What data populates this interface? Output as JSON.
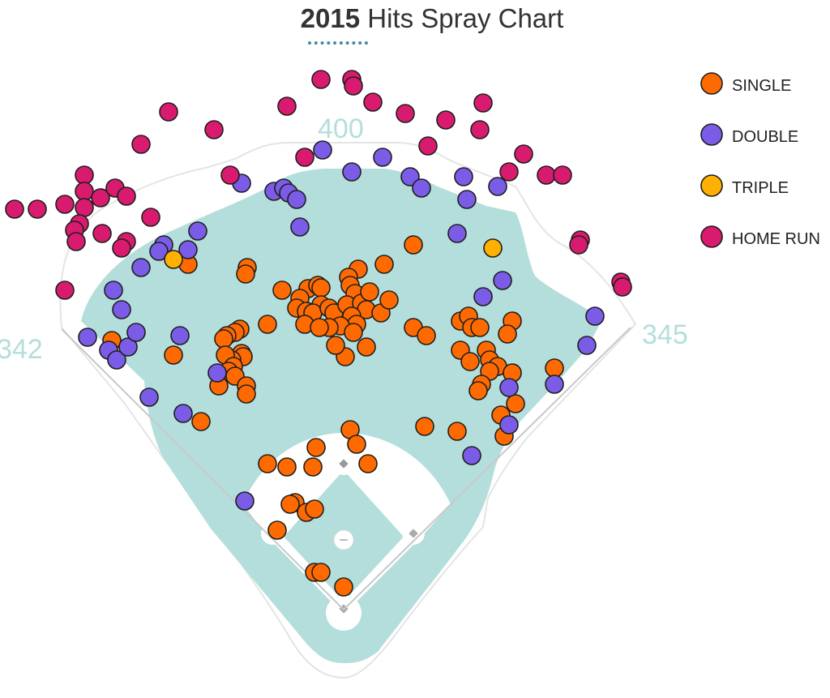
{
  "title": {
    "year": "2015",
    "rest": " Hits Spray Chart"
  },
  "colors": {
    "SINGLE": "#ff6a00",
    "DOUBLE": "#7b5ce6",
    "TRIPLE": "#ffb000",
    "HOME RUN": "#d81b6e",
    "field": "#b4dedb",
    "wall": "#dcdcdc"
  },
  "chart_data": {
    "type": "scatter",
    "title": "2015 Hits Spray Chart",
    "distance_labels": {
      "left_field": "342",
      "center_field": "400",
      "right_field": "345"
    },
    "legend": [
      "SINGLE",
      "DOUBLE",
      "TRIPLE",
      "HOME RUN"
    ],
    "legend_position": "top-right",
    "series": [
      {
        "name": "SINGLE",
        "points": [
          [
            510,
            302
          ],
          [
            474,
            326
          ],
          [
            442,
            332
          ],
          [
            430,
            342
          ],
          [
            432,
            352
          ],
          [
            438,
            362
          ],
          [
            305,
            330
          ],
          [
            303,
            338
          ],
          [
            348,
            358
          ],
          [
            380,
            356
          ],
          [
            392,
            352
          ],
          [
            396,
            355
          ],
          [
            370,
            368
          ],
          [
            366,
            380
          ],
          [
            378,
            384
          ],
          [
            396,
            376
          ],
          [
            386,
            386
          ],
          [
            406,
            380
          ],
          [
            412,
            386
          ],
          [
            428,
            376
          ],
          [
            446,
            374
          ],
          [
            452,
            382
          ],
          [
            470,
            386
          ],
          [
            480,
            370
          ],
          [
            456,
            360
          ],
          [
            434,
            390
          ],
          [
            440,
            400
          ],
          [
            420,
            402
          ],
          [
            406,
            404
          ],
          [
            376,
            400
          ],
          [
            394,
            404
          ],
          [
            330,
            400
          ],
          [
            296,
            406
          ],
          [
            290,
            410
          ],
          [
            280,
            414
          ],
          [
            276,
            418
          ],
          [
            298,
            436
          ],
          [
            300,
            440
          ],
          [
            286,
            444
          ],
          [
            278,
            438
          ],
          [
            288,
            452
          ],
          [
            282,
            458
          ],
          [
            290,
            464
          ],
          [
            270,
            476
          ],
          [
            304,
            476
          ],
          [
            304,
            486
          ],
          [
            436,
            410
          ],
          [
            452,
            428
          ],
          [
            426,
            440
          ],
          [
            414,
            426
          ],
          [
            510,
            404
          ],
          [
            526,
            414
          ],
          [
            568,
            396
          ],
          [
            578,
            390
          ],
          [
            582,
            404
          ],
          [
            592,
            404
          ],
          [
            632,
            396
          ],
          [
            626,
            412
          ],
          [
            600,
            432
          ],
          [
            604,
            444
          ],
          [
            614,
            452
          ],
          [
            632,
            460
          ],
          [
            604,
            458
          ],
          [
            594,
            474
          ],
          [
            590,
            482
          ],
          [
            568,
            432
          ],
          [
            580,
            446
          ],
          [
            636,
            498
          ],
          [
            618,
            512
          ],
          [
            622,
            538
          ],
          [
            684,
            454
          ],
          [
            564,
            532
          ],
          [
            524,
            526
          ],
          [
            432,
            530
          ],
          [
            440,
            548
          ],
          [
            454,
            572
          ],
          [
            390,
            552
          ],
          [
            386,
            576
          ],
          [
            354,
            576
          ],
          [
            330,
            572
          ],
          [
            364,
            620
          ],
          [
            358,
            622
          ],
          [
            378,
            632
          ],
          [
            388,
            628
          ],
          [
            342,
            654
          ],
          [
            388,
            706
          ],
          [
            396,
            706
          ],
          [
            424,
            724
          ],
          [
            138,
            420
          ],
          [
            214,
            438
          ],
          [
            248,
            520
          ],
          [
            232,
            326
          ]
        ]
      },
      {
        "name": "DOUBLE",
        "points": [
          [
            398,
            185
          ],
          [
            472,
            194
          ],
          [
            434,
            212
          ],
          [
            506,
            218
          ],
          [
            520,
            232
          ],
          [
            572,
            218
          ],
          [
            614,
            230
          ],
          [
            576,
            246
          ],
          [
            564,
            288
          ],
          [
            298,
            226
          ],
          [
            338,
            236
          ],
          [
            350,
            232
          ],
          [
            356,
            238
          ],
          [
            366,
            246
          ],
          [
            370,
            280
          ],
          [
            244,
            285
          ],
          [
            202,
            302
          ],
          [
            196,
            310
          ],
          [
            232,
            308
          ],
          [
            174,
            330
          ],
          [
            140,
            358
          ],
          [
            150,
            382
          ],
          [
            108,
            416
          ],
          [
            134,
            432
          ],
          [
            144,
            444
          ],
          [
            158,
            428
          ],
          [
            168,
            410
          ],
          [
            222,
            414
          ],
          [
            268,
            460
          ],
          [
            184,
            490
          ],
          [
            226,
            510
          ],
          [
            302,
            618
          ],
          [
            582,
            562
          ],
          [
            628,
            524
          ],
          [
            628,
            478
          ],
          [
            684,
            474
          ],
          [
            620,
            346
          ],
          [
            596,
            366
          ],
          [
            734,
            390
          ],
          [
            724,
            426
          ]
        ]
      },
      {
        "name": "TRIPLE",
        "points": [
          [
            214,
            320
          ],
          [
            608,
            306
          ]
        ]
      },
      {
        "name": "HOME RUN",
        "points": [
          [
            396,
            98
          ],
          [
            434,
            98
          ],
          [
            436,
            106
          ],
          [
            460,
            126
          ],
          [
            500,
            140
          ],
          [
            550,
            148
          ],
          [
            596,
            127
          ],
          [
            592,
            160
          ],
          [
            646,
            190
          ],
          [
            628,
            212
          ],
          [
            674,
            216
          ],
          [
            694,
            216
          ],
          [
            716,
            296
          ],
          [
            714,
            302
          ],
          [
            766,
            348
          ],
          [
            768,
            354
          ],
          [
            528,
            180
          ],
          [
            376,
            194
          ],
          [
            284,
            216
          ],
          [
            354,
            131
          ],
          [
            264,
            160
          ],
          [
            208,
            138
          ],
          [
            174,
            178
          ],
          [
            104,
            216
          ],
          [
            104,
            236
          ],
          [
            80,
            252
          ],
          [
            104,
            256
          ],
          [
            124,
            244
          ],
          [
            142,
            232
          ],
          [
            156,
            242
          ],
          [
            186,
            268
          ],
          [
            98,
            276
          ],
          [
            92,
            284
          ],
          [
            94,
            298
          ],
          [
            126,
            288
          ],
          [
            156,
            298
          ],
          [
            150,
            306
          ],
          [
            18,
            258
          ],
          [
            46,
            258
          ],
          [
            80,
            358
          ]
        ]
      }
    ]
  }
}
